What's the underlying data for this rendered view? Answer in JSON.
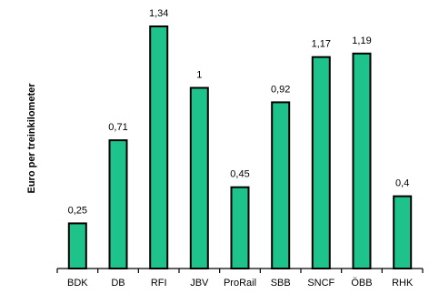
{
  "chart_data": {
    "type": "bar",
    "title": "",
    "xlabel": "",
    "ylabel": "Euro per treinkilometer",
    "categories": [
      "BDK",
      "DB",
      "RFI",
      "JBV",
      "ProRail",
      "SBB",
      "SNCF",
      "ÖBB",
      "RHK"
    ],
    "values": [
      0.25,
      0.71,
      1.34,
      1.0,
      0.45,
      0.92,
      1.17,
      1.19,
      0.4
    ],
    "data_labels": [
      "0,25",
      "0,71",
      "1,34",
      "1",
      "0,45",
      "0,92",
      "1,17",
      "1,19",
      "0,4"
    ],
    "ylim": [
      0,
      1.34
    ],
    "grid": false,
    "legend": "none",
    "colors": {
      "bar_fill": "#1ec28b",
      "bar_stroke": "#000000",
      "axis": "#000000"
    }
  }
}
